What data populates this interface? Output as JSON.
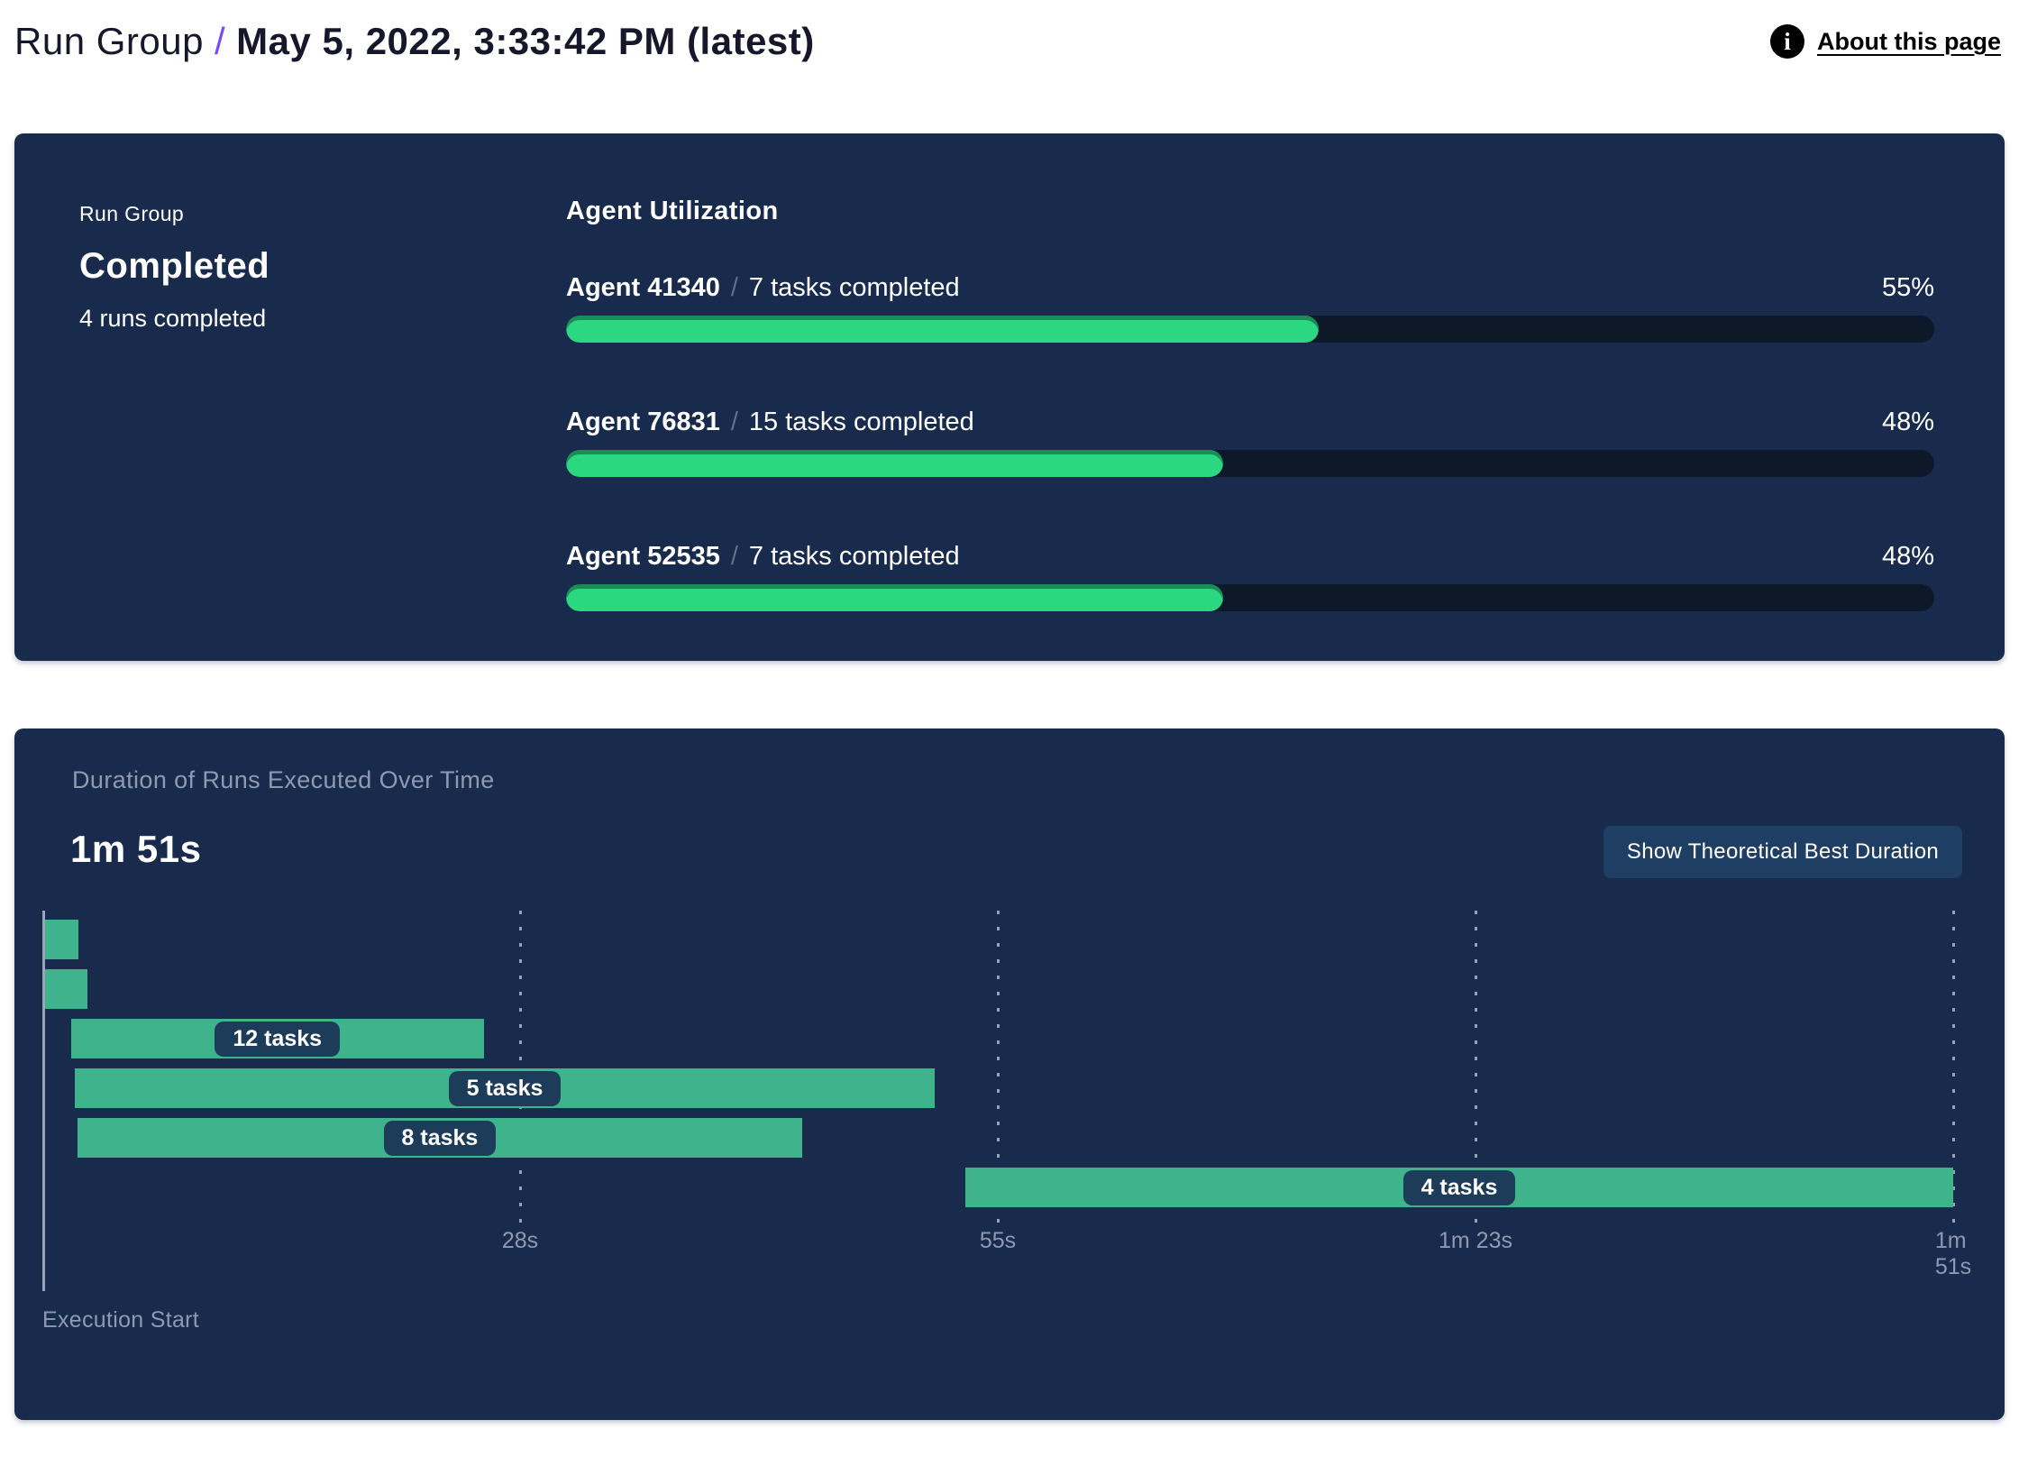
{
  "colors": {
    "panel_bg": "#182B4D",
    "progress_fill": "#2BD781",
    "progress_track": "#0D1828",
    "gantt_bar": "#3FB48C",
    "chip_bg": "#1D3C5A",
    "accent_purple": "#7A4BF5",
    "muted_text": "#8E9AB0",
    "button_bg": "#1E3F63"
  },
  "header": {
    "breadcrumb_root": "Run Group",
    "separator": "/",
    "title": "May 5, 2022, 3:33:42 PM (latest)",
    "about_link": "About this page",
    "info_icon_glyph": "i"
  },
  "status_card": {
    "label": "Run Group",
    "status": "Completed",
    "subtitle": "4 runs completed"
  },
  "agent_utilization": {
    "title": "Agent Utilization",
    "separator": "/",
    "agents": [
      {
        "name": "Agent 41340",
        "tasks": "7 tasks completed",
        "percent": 55,
        "percent_label": "55%"
      },
      {
        "name": "Agent 76831",
        "tasks": "15 tasks completed",
        "percent": 48,
        "percent_label": "48%"
      },
      {
        "name": "Agent 52535",
        "tasks": "7 tasks completed",
        "percent": 48,
        "percent_label": "48%"
      }
    ]
  },
  "duration_chart": {
    "title": "Duration of Runs Executed Over Time",
    "total_label": "1m 51s",
    "button_label": "Show Theoretical Best Duration",
    "axis_label": "Execution Start",
    "ticks": [
      {
        "label": "28s",
        "pct": 25
      },
      {
        "label": "55s",
        "pct": 50
      },
      {
        "label": "1m 23s",
        "pct": 75
      },
      {
        "label": "1m 51s",
        "pct": 100
      }
    ],
    "runs": [
      {
        "label": "",
        "start_pct": 0.15,
        "width_pct": 1.75,
        "start_s": 0,
        "end_s": 2
      },
      {
        "label": "",
        "start_pct": 0.15,
        "width_pct": 2.2,
        "start_s": 0,
        "end_s": 2.5
      },
      {
        "label": "12 tasks",
        "start_pct": 1.5,
        "width_pct": 21.6,
        "start_s": 1.7,
        "end_s": 25.7
      },
      {
        "label": "5 tasks",
        "start_pct": 1.7,
        "width_pct": 45.0,
        "start_s": 1.9,
        "end_s": 51.8
      },
      {
        "label": "8 tasks",
        "start_pct": 1.85,
        "width_pct": 37.9,
        "start_s": 2.1,
        "end_s": 44.1
      },
      {
        "label": "4 tasks",
        "start_pct": 48.3,
        "width_pct": 51.7,
        "start_s": 53.6,
        "end_s": 111
      }
    ]
  },
  "chart_data": [
    {
      "type": "bar",
      "orientation": "horizontal",
      "title": "Agent Utilization",
      "categories": [
        "Agent 41340",
        "Agent 76831",
        "Agent 52535"
      ],
      "values": [
        55,
        48,
        48
      ],
      "value_labels": [
        "55%",
        "48%",
        "48%"
      ],
      "annotations": [
        "7 tasks completed",
        "15 tasks completed",
        "7 tasks completed"
      ],
      "xlim": [
        0,
        100
      ],
      "grid": false
    },
    {
      "type": "bar",
      "subtype": "gantt-timeline",
      "title": "Duration of Runs Executed Over Time",
      "total_duration_label": "1m 51s",
      "xlabel": "Execution Start",
      "xlim_seconds": [
        0,
        111
      ],
      "x_tick_labels": [
        "28s",
        "55s",
        "1m 23s",
        "1m 51s"
      ],
      "x_tick_pcts": [
        25,
        50,
        75,
        100
      ],
      "grid": "dashed-vertical",
      "series": [
        {
          "name": "run-1",
          "label": "",
          "start_s": 0,
          "end_s": 2
        },
        {
          "name": "run-2",
          "label": "",
          "start_s": 0,
          "end_s": 2.5
        },
        {
          "name": "run-3",
          "label": "12 tasks",
          "start_s": 1.7,
          "end_s": 25.7
        },
        {
          "name": "run-4",
          "label": "5 tasks",
          "start_s": 1.9,
          "end_s": 51.8
        },
        {
          "name": "run-5",
          "label": "8 tasks",
          "start_s": 2.1,
          "end_s": 44.1
        },
        {
          "name": "run-6",
          "label": "4 tasks",
          "start_s": 53.6,
          "end_s": 111
        }
      ]
    }
  ]
}
